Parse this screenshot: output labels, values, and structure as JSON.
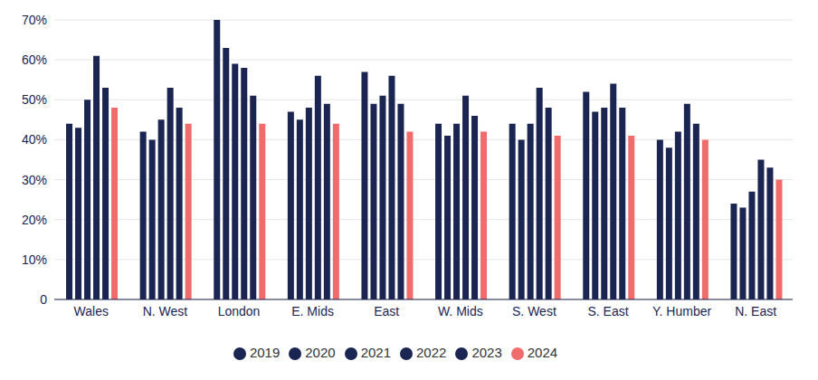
{
  "chart_data": {
    "type": "bar",
    "categories": [
      "Wales",
      "N. West",
      "London",
      "E. Mids",
      "East",
      "W. Mids",
      "S. West",
      "S. East",
      "Y. Humber",
      "N. East"
    ],
    "series": [
      {
        "name": "2019",
        "color": "#1b2552",
        "values": [
          44,
          42,
          70,
          47,
          57,
          44,
          44,
          52,
          40,
          24
        ]
      },
      {
        "name": "2020",
        "color": "#1b2552",
        "values": [
          43,
          40,
          63,
          45,
          49,
          41,
          40,
          47,
          38,
          23
        ]
      },
      {
        "name": "2021",
        "color": "#1b2552",
        "values": [
          50,
          45,
          59,
          48,
          51,
          44,
          44,
          48,
          42,
          27
        ]
      },
      {
        "name": "2022",
        "color": "#1b2552",
        "values": [
          61,
          53,
          58,
          56,
          56,
          51,
          53,
          54,
          49,
          35
        ]
      },
      {
        "name": "2023",
        "color": "#1b2552",
        "values": [
          53,
          48,
          51,
          49,
          49,
          46,
          48,
          48,
          44,
          33
        ]
      },
      {
        "name": "2024",
        "color": "#f06b6b",
        "values": [
          48,
          44,
          44,
          44,
          42,
          42,
          41,
          41,
          40,
          30
        ]
      }
    ],
    "ylim": [
      0,
      70
    ],
    "yticks": [
      0,
      {
        "value": 10,
        "label": "10%"
      },
      {
        "value": 20,
        "label": "20%"
      },
      {
        "value": 30,
        "label": "30%"
      },
      {
        "value": 40,
        "label": "40%"
      },
      {
        "value": 50,
        "label": "50%"
      },
      {
        "value": 60,
        "label": "60%"
      },
      {
        "value": 70,
        "label": "70%"
      }
    ],
    "grid": true,
    "legend": "bottom"
  }
}
